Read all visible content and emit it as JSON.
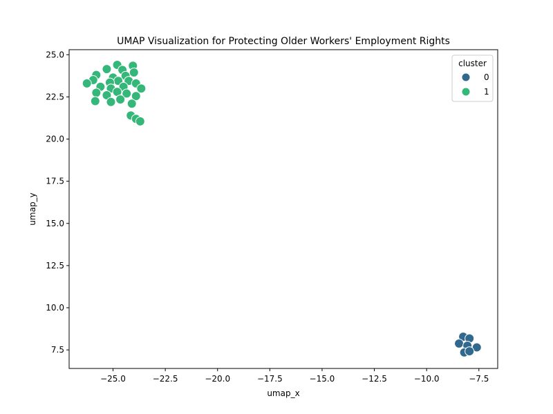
{
  "chart_data": {
    "type": "scatter",
    "title": "UMAP Visualization for Protecting Older Workers' Employment Rights",
    "xlabel": "umap_x",
    "ylabel": "umap_y",
    "xlim": [
      -27.1,
      -6.6
    ],
    "ylim": [
      6.4,
      25.3
    ],
    "xticks": [
      -25.0,
      -22.5,
      -20.0,
      -17.5,
      -15.0,
      -12.5,
      -10.0,
      -7.5
    ],
    "xtick_labels": [
      "−25.0",
      "−22.5",
      "−20.0",
      "−17.5",
      "−15.0",
      "−12.5",
      "−10.0",
      "−7.5"
    ],
    "yticks": [
      7.5,
      10.0,
      12.5,
      15.0,
      17.5,
      20.0,
      22.5,
      25.0
    ],
    "ytick_labels": [
      "7.5",
      "10.0",
      "12.5",
      "15.0",
      "17.5",
      "20.0",
      "22.5",
      "25.0"
    ],
    "grid": false,
    "legend": {
      "title": "cluster",
      "placement": "top-right",
      "entries": [
        {
          "label": "0",
          "color": "#31688e"
        },
        {
          "label": "1",
          "color": "#35b779"
        }
      ]
    },
    "series": [
      {
        "name": "0",
        "color": "#31688e",
        "points": [
          [
            -8.25,
            8.28
          ],
          [
            -7.95,
            8.18
          ],
          [
            -8.45,
            7.88
          ],
          [
            -8.05,
            7.75
          ],
          [
            -7.6,
            7.65
          ],
          [
            -8.2,
            7.35
          ],
          [
            -7.95,
            7.42
          ]
        ]
      },
      {
        "name": "1",
        "color": "#35b779",
        "points": [
          [
            -24.8,
            24.4
          ],
          [
            -24.05,
            24.35
          ],
          [
            -25.3,
            24.15
          ],
          [
            -24.55,
            24.1
          ],
          [
            -25.8,
            23.8
          ],
          [
            -24.0,
            23.95
          ],
          [
            -24.4,
            23.75
          ],
          [
            -25.0,
            23.65
          ],
          [
            -25.95,
            23.5
          ],
          [
            -24.75,
            23.45
          ],
          [
            -24.25,
            23.45
          ],
          [
            -26.25,
            23.3
          ],
          [
            -25.15,
            23.35
          ],
          [
            -23.9,
            23.3
          ],
          [
            -25.6,
            23.1
          ],
          [
            -24.5,
            23.1
          ],
          [
            -23.65,
            23.0
          ],
          [
            -25.1,
            23.0
          ],
          [
            -24.8,
            22.8
          ],
          [
            -25.8,
            22.75
          ],
          [
            -24.35,
            22.7
          ],
          [
            -25.3,
            22.6
          ],
          [
            -23.9,
            22.55
          ],
          [
            -24.65,
            22.35
          ],
          [
            -25.85,
            22.25
          ],
          [
            -25.1,
            22.2
          ],
          [
            -24.1,
            22.1
          ],
          [
            -24.15,
            21.4
          ],
          [
            -23.9,
            21.2
          ],
          [
            -23.7,
            21.05
          ]
        ]
      }
    ]
  }
}
